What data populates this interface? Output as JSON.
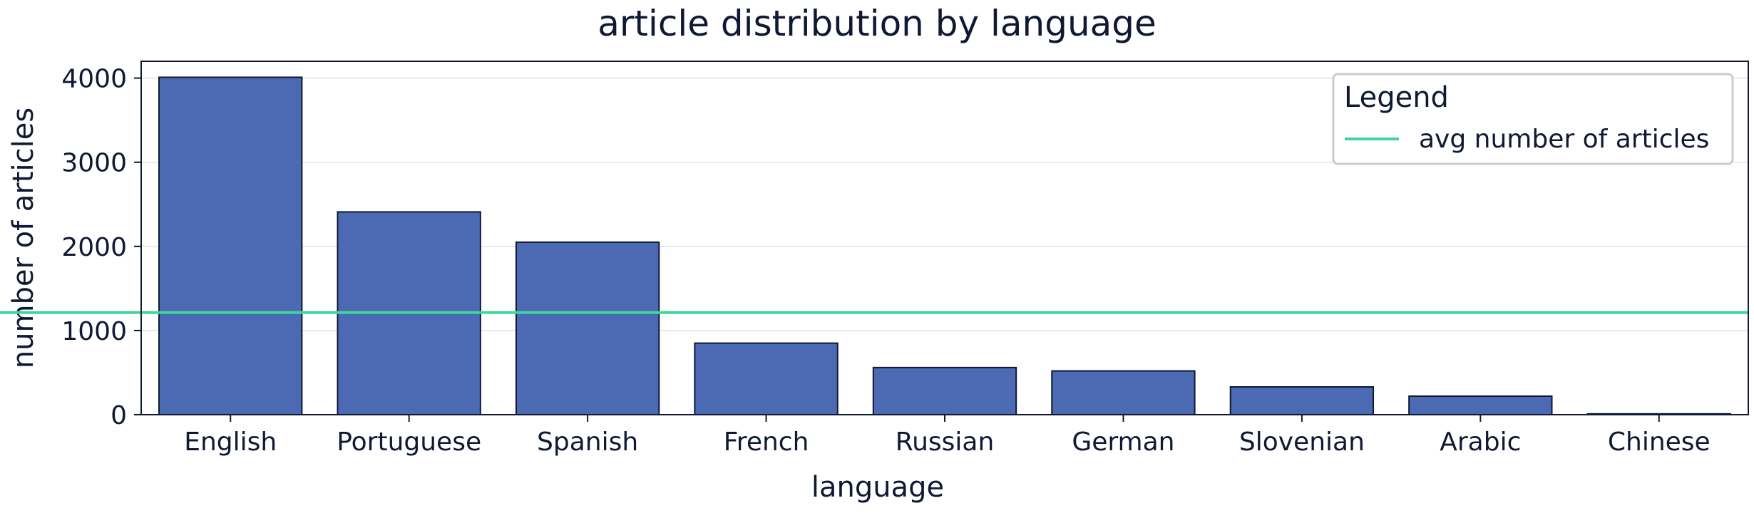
{
  "chart_data": {
    "type": "bar",
    "title": "article distribution by language",
    "xlabel": "language",
    "ylabel": "number of articles",
    "categories": [
      "English",
      "Portuguese",
      "Spanish",
      "French",
      "Russian",
      "German",
      "Slovenian",
      "Arabic",
      "Chinese"
    ],
    "values": [
      4010,
      2410,
      2050,
      850,
      560,
      520,
      330,
      220,
      10
    ],
    "ylim": [
      0,
      4200
    ],
    "yticks": [
      0,
      1000,
      2000,
      3000,
      4000
    ],
    "reference_line": {
      "name": "avg number of articles",
      "value": 1214
    },
    "legend": {
      "title": "Legend",
      "entries": [
        "avg number of articles"
      ],
      "placement": "top-right"
    },
    "grid": "horizontal",
    "colors": {
      "bar": "#4c69b3",
      "bar_edge": "#0f1933",
      "avg_line": "#3dd69b",
      "text": "#0f1933",
      "grid": "#e3e3e3"
    }
  }
}
